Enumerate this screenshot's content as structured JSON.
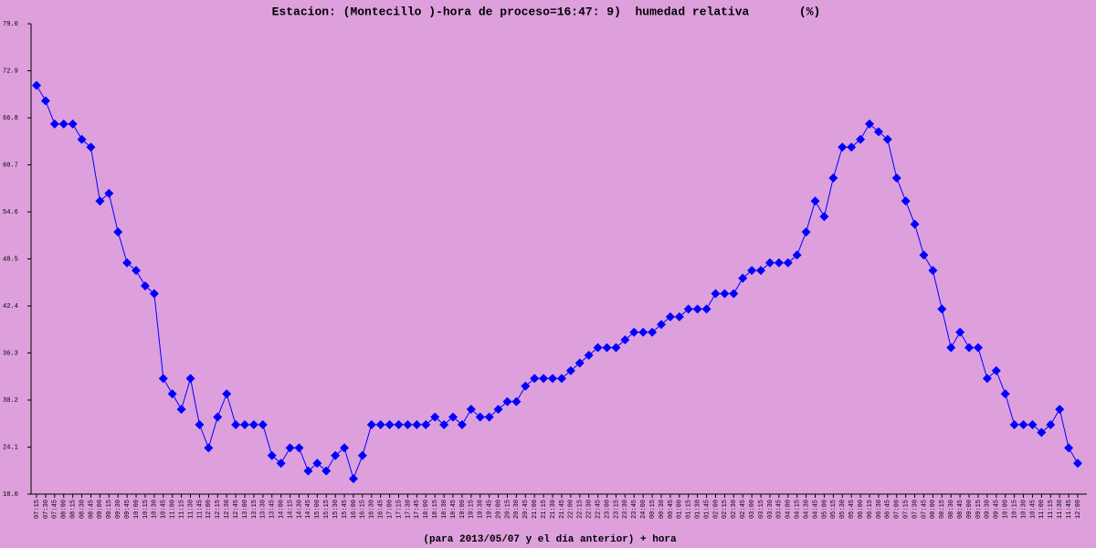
{
  "chart_data": {
    "type": "line",
    "title": "Estacion: (Montecillo )-hora de proceso=16:47: 9)  humedad relativa       (%)",
    "x_label": "(para 2013/05/07 y el día anterior) + hora",
    "color": "#0000ff",
    "categories": [
      "07:15",
      "07:30",
      "07:45",
      "08:00",
      "08:15",
      "08:30",
      "08:45",
      "09:00",
      "09:15",
      "09:30",
      "09:45",
      "10:00",
      "10:15",
      "10:30",
      "10:45",
      "11:00",
      "11:15",
      "11:30",
      "11:45",
      "12:00",
      "12:15",
      "12:30",
      "12:45",
      "13:00",
      "13:15",
      "13:30",
      "13:45",
      "14:00",
      "14:15",
      "14:30",
      "14:45",
      "15:00",
      "15:15",
      "15:30",
      "15:45",
      "16:00",
      "16:15",
      "16:30",
      "16:45",
      "17:00",
      "17:15",
      "17:30",
      "17:45",
      "18:00",
      "18:15",
      "18:30",
      "18:45",
      "19:00",
      "19:15",
      "19:30",
      "19:45",
      "20:00",
      "20:15",
      "20:30",
      "20:45",
      "21:00",
      "21:15",
      "21:30",
      "21:45",
      "22:00",
      "22:15",
      "22:30",
      "22:45",
      "23:00",
      "23:15",
      "23:30",
      "23:45",
      "24:00",
      "00:15",
      "00:30",
      "00:45",
      "01:00",
      "01:15",
      "01:30",
      "01:45",
      "02:00",
      "02:15",
      "02:30",
      "02:45",
      "03:00",
      "03:15",
      "03:30",
      "03:45",
      "04:00",
      "04:15",
      "04:30",
      "04:45",
      "05:00",
      "05:15",
      "05:30",
      "05:45",
      "06:00",
      "06:15",
      "06:30",
      "06:45",
      "07:00",
      "07:15",
      "07:30",
      "07:45",
      "08:00",
      "08:15",
      "08:30",
      "08:45",
      "09:00",
      "09:15",
      "09:30",
      "09:45",
      "10:00",
      "10:15",
      "10:30",
      "10:45",
      "11:00",
      "11:15",
      "11:30",
      "11:45",
      "12:00"
    ],
    "values": [
      71,
      69,
      66,
      66,
      66,
      64,
      63,
      56,
      57,
      52,
      48,
      47,
      45,
      44,
      33,
      31,
      29,
      33,
      27,
      24,
      28,
      31,
      27,
      27,
      27,
      27,
      23,
      22,
      24,
      24,
      21,
      22,
      21,
      23,
      24,
      20,
      23,
      27,
      27,
      27,
      27,
      27,
      27,
      27,
      28,
      27,
      28,
      27,
      29,
      28,
      28,
      29,
      30,
      30,
      32,
      33,
      33,
      33,
      33,
      34,
      35,
      36,
      37,
      37,
      37,
      38,
      39,
      39,
      39,
      40,
      41,
      41,
      42,
      42,
      42,
      44,
      44,
      44,
      46,
      47,
      47,
      48,
      48,
      48,
      49,
      52,
      56,
      54,
      59,
      63,
      63,
      64,
      66,
      65,
      64,
      59,
      56,
      53,
      49,
      47,
      42,
      37,
      39,
      37,
      37,
      33,
      34,
      31,
      27,
      27,
      27,
      26,
      27,
      29,
      24,
      22
    ],
    "ylim": [
      18,
      79
    ],
    "yticks": [
      {
        "value": 18,
        "label": "18.0"
      },
      {
        "value": 24.1,
        "label": "24.1"
      },
      {
        "value": 30.2,
        "label": "30.2"
      },
      {
        "value": 36.3,
        "label": "36.3"
      },
      {
        "value": 42.4,
        "label": "42.4"
      },
      {
        "value": 48.5,
        "label": "48.5"
      },
      {
        "value": 54.6,
        "label": "54.6"
      },
      {
        "value": 60.7,
        "label": "60.7"
      },
      {
        "value": 66.8,
        "label": "66.8"
      },
      {
        "value": 72.9,
        "label": "72.9"
      },
      {
        "value": 79,
        "label": "79.0"
      }
    ]
  }
}
